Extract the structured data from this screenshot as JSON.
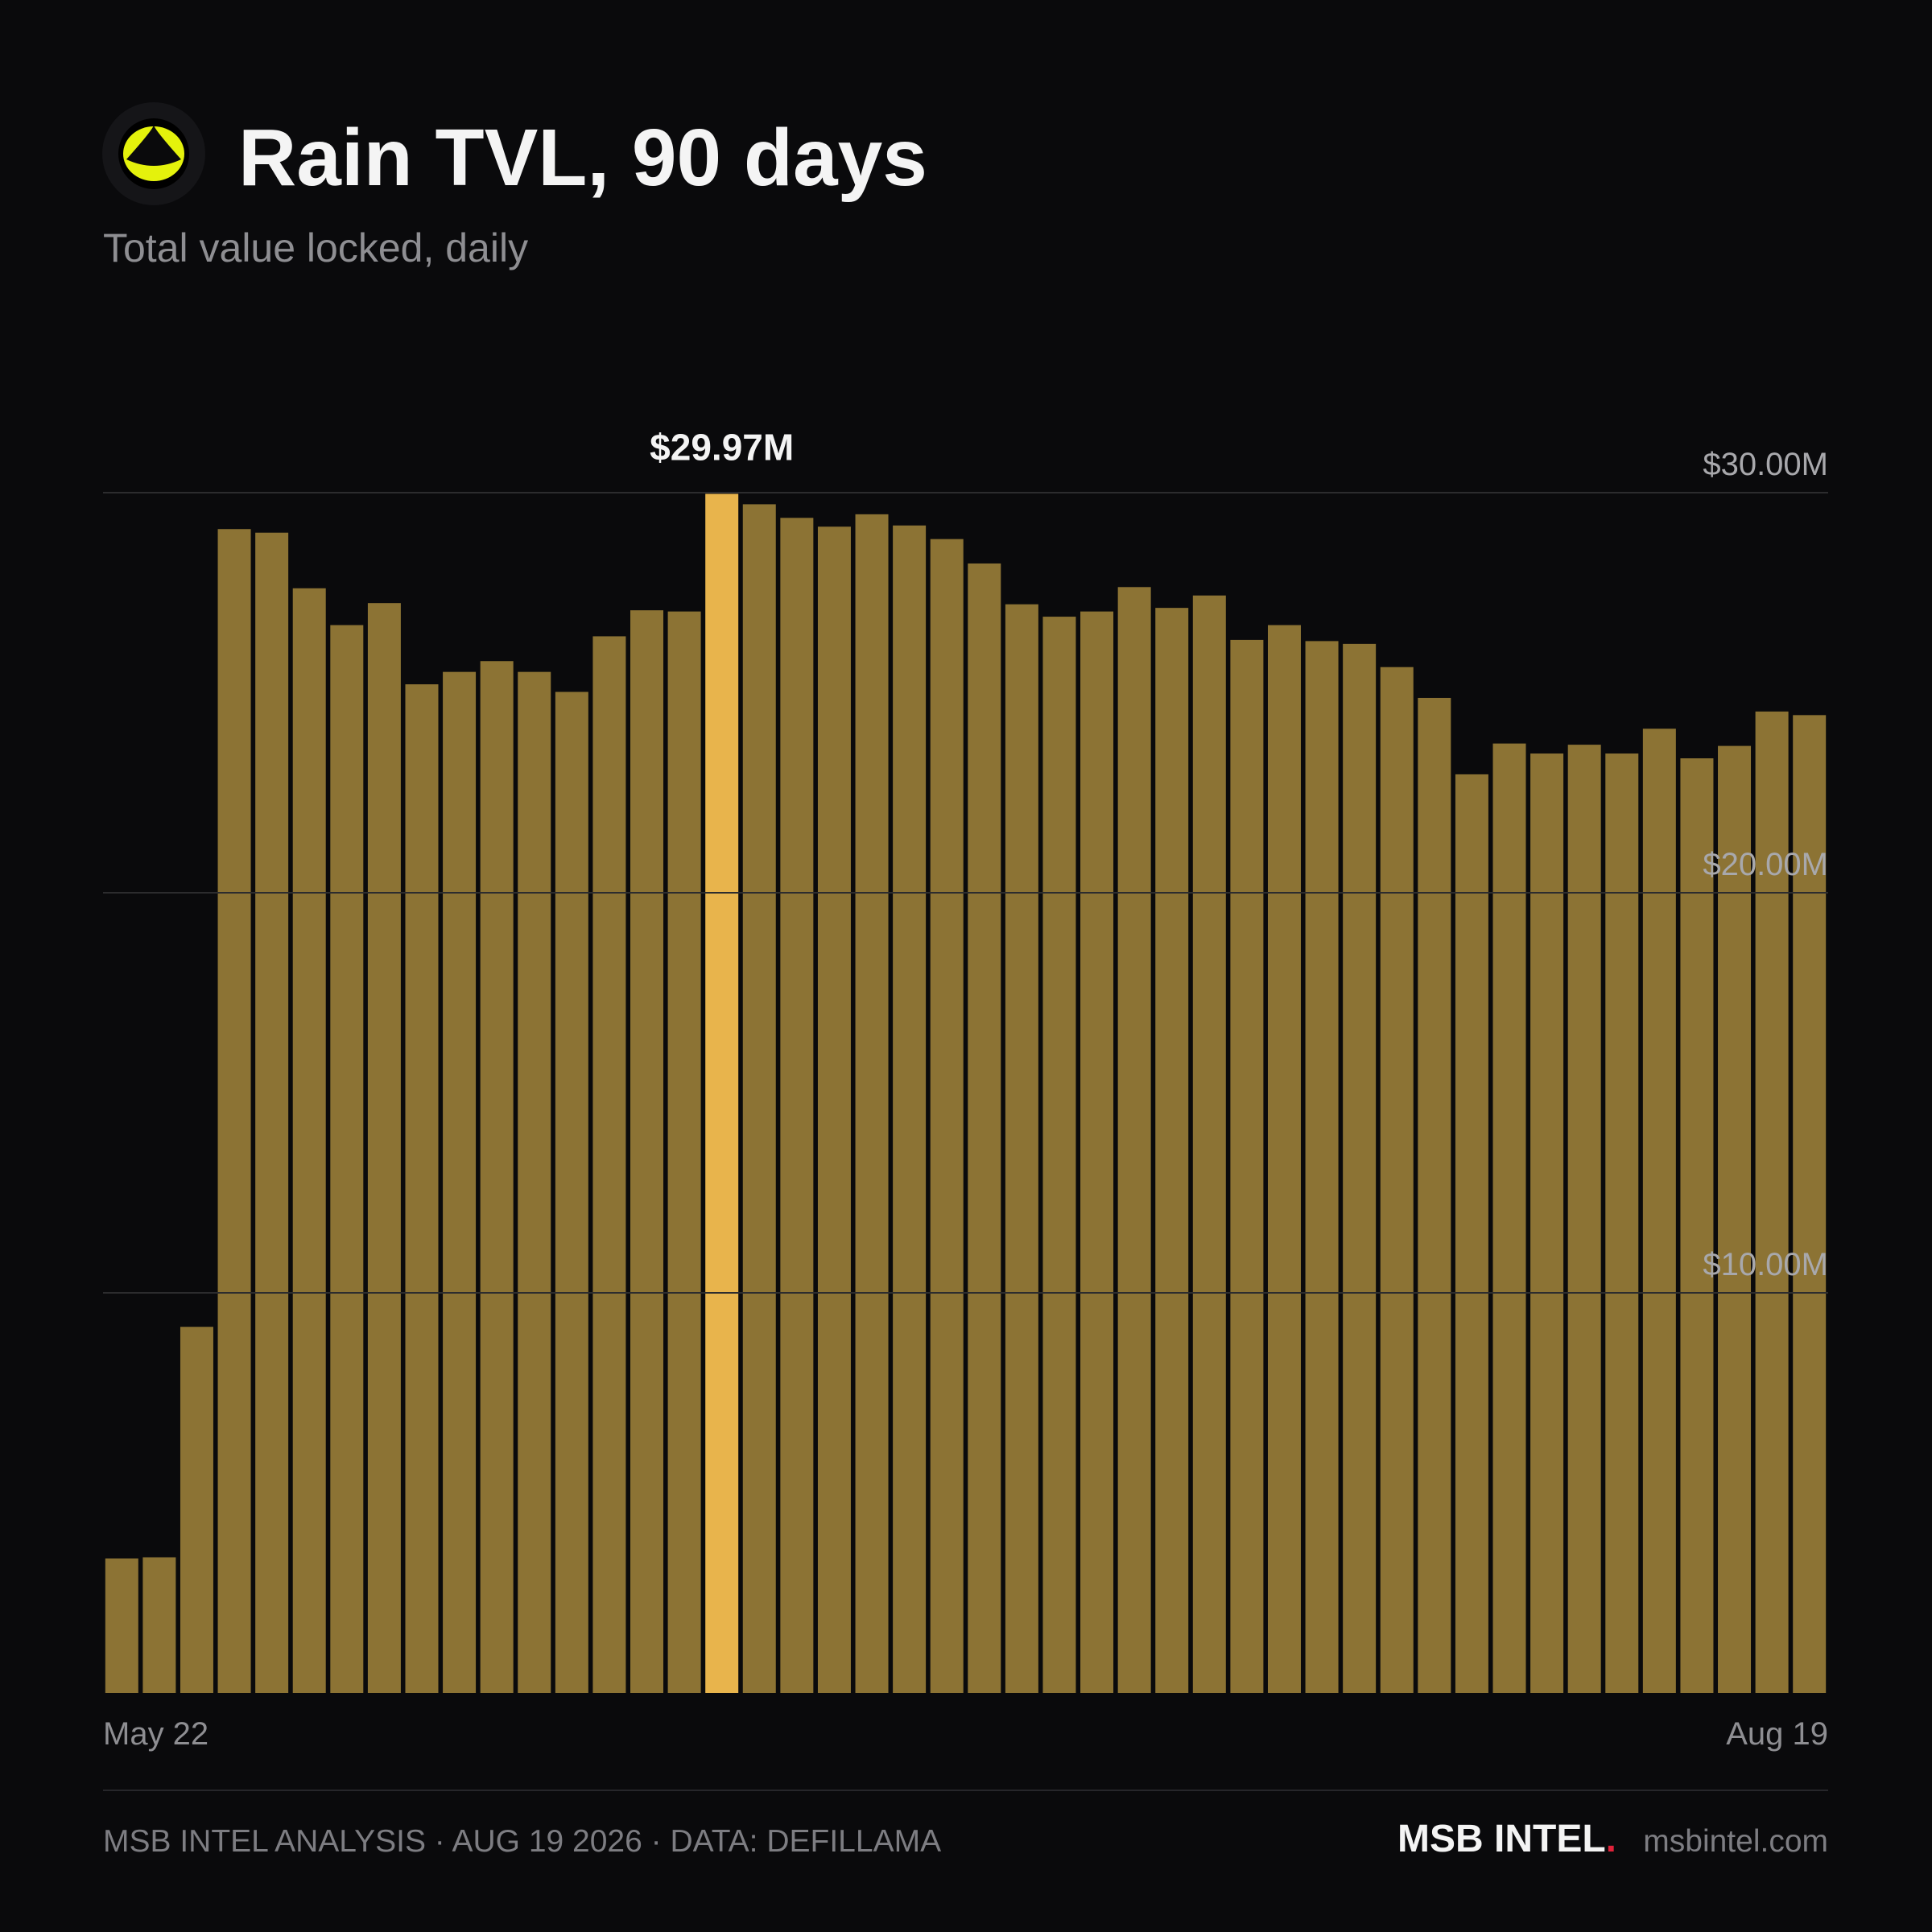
{
  "chart_data": {
    "type": "bar",
    "title": "Rain TVL, 90 days",
    "subtitle": "Total value locked, daily",
    "categories": [
      "May 22",
      null,
      null,
      null,
      null,
      null,
      null,
      null,
      null,
      null,
      null,
      null,
      null,
      null,
      null,
      null,
      null,
      null,
      null,
      null,
      null,
      null,
      null,
      null,
      null,
      null,
      null,
      null,
      null,
      null,
      null,
      null,
      null,
      null,
      null,
      null,
      null,
      null,
      null,
      null,
      null,
      null,
      null,
      null,
      null,
      "Aug 19"
    ],
    "values": [
      3.36,
      3.39,
      9.15,
      29.09,
      29.0,
      27.61,
      26.69,
      27.24,
      25.21,
      25.52,
      25.79,
      25.52,
      25.02,
      26.41,
      27.06,
      27.03,
      29.97,
      29.71,
      29.37,
      29.15,
      29.46,
      29.18,
      28.84,
      28.23,
      27.21,
      26.9,
      27.03,
      27.64,
      27.12,
      27.43,
      26.32,
      26.69,
      26.29,
      26.22,
      25.64,
      24.87,
      22.96,
      23.73,
      23.48,
      23.7,
      23.48,
      24.1,
      23.36,
      23.67,
      24.53,
      24.44
    ],
    "value_labels": [
      null,
      null,
      null,
      null,
      null,
      null,
      null,
      null,
      null,
      null,
      null,
      null,
      null,
      null,
      null,
      null,
      "$29.97M",
      null,
      null,
      null,
      null,
      null,
      null,
      null,
      null,
      null,
      null,
      null,
      null,
      null,
      null,
      null,
      null,
      null,
      null,
      null,
      null,
      null,
      null,
      null,
      null,
      null,
      null,
      null,
      null,
      null
    ],
    "color": "#8c7334",
    "highlight_color": "#e8b44c",
    "ylim": [
      0,
      30
    ],
    "yticks": [
      {
        "value": 10,
        "label": "$10.00M"
      },
      {
        "value": 20,
        "label": "$20.00M"
      },
      {
        "value": 30,
        "label": "$30.00M"
      }
    ],
    "grid": true
  },
  "footer": {
    "source": "MSB INTEL ANALYSIS · AUG 19 2026 · DATA: DEFILLAMA",
    "brand_name": "MSB INTEL",
    "brand_dot": ".",
    "website": "msbintel.com"
  }
}
